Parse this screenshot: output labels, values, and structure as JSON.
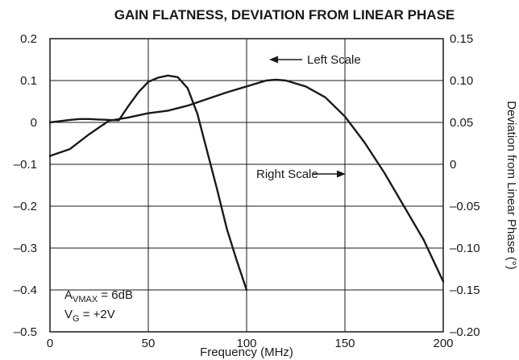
{
  "chart_data": {
    "type": "line",
    "title": "GAIN FLATNESS, DEVIATION FROM LINEAR PHASE",
    "xlabel": "Frequency (MHz)",
    "ylabel": "",
    "y2label": "Deviation from Linear Phase (°)",
    "xlim": [
      0,
      200
    ],
    "ylim": [
      -0.5,
      0.2
    ],
    "y2lim": [
      -0.2,
      0.15
    ],
    "x_ticks": [
      "0",
      "50",
      "100",
      "150",
      "200"
    ],
    "y_ticks": [
      "0.2",
      "0.1",
      "0",
      "–0.1",
      "–0.2",
      "–0.3",
      "–0.4",
      "–0.5"
    ],
    "y2_ticks": [
      "0.15",
      "0.10",
      "0.05",
      "0",
      "–0.05",
      "–0.10",
      "–0.15",
      "–0.20"
    ],
    "grid": true,
    "series": [
      {
        "name": "Left Scale",
        "axis": "left",
        "x": [
          0,
          5,
          10,
          15,
          20,
          25,
          30,
          35,
          40,
          45,
          50,
          55,
          60,
          65,
          70,
          75,
          80,
          85,
          90,
          95,
          100
        ],
        "y": [
          0.0,
          0.003,
          0.006,
          0.008,
          0.008,
          0.007,
          0.006,
          0.005,
          0.04,
          0.072,
          0.097,
          0.107,
          0.112,
          0.108,
          0.082,
          0.02,
          -0.07,
          -0.16,
          -0.255,
          -0.33,
          -0.4
        ]
      },
      {
        "name": "Right Scale",
        "axis": "right",
        "x": [
          0,
          10,
          20,
          30,
          40,
          50,
          60,
          70,
          80,
          90,
          100,
          110,
          115,
          120,
          130,
          140,
          150,
          160,
          170,
          180,
          190,
          200
        ],
        "y": [
          0.01,
          0.018,
          0.036,
          0.052,
          0.056,
          0.061,
          0.064,
          0.07,
          0.078,
          0.086,
          0.093,
          0.1,
          0.101,
          0.1,
          0.093,
          0.08,
          0.057,
          0.026,
          -0.01,
          -0.05,
          -0.09,
          -0.14
        ]
      }
    ],
    "annotations": {
      "left_scale": "Left Scale",
      "right_scale": "Right Scale",
      "avmax_label": "A",
      "avmax_sub": "VMAX",
      "avmax_value": " = 6dB",
      "vg_label": "V",
      "vg_sub": "G",
      "vg_value": " = +2V"
    }
  }
}
